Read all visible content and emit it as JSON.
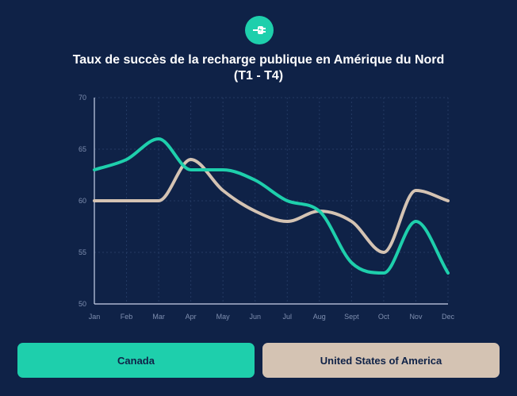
{
  "header": {
    "title_line1": "Taux de succès de la recharge publique en Amérique du Nord",
    "title_line2": "(T1 - T4)",
    "logo_icon": "plug-icon"
  },
  "legend": {
    "canada_label": "Canada",
    "usa_label": "United States of America"
  },
  "chart_data": {
    "type": "line",
    "categories": [
      "Jan",
      "Feb",
      "Mar",
      "Apr",
      "May",
      "Jun",
      "Jul",
      "Aug",
      "Sept",
      "Oct",
      "Nov",
      "Dec"
    ],
    "series": [
      {
        "name": "Canada",
        "color": "#1ecfac",
        "values": [
          63,
          64,
          66,
          63,
          63,
          62,
          60,
          59,
          54,
          53,
          58,
          53
        ]
      },
      {
        "name": "United States of America",
        "color": "#d4c3b3",
        "values": [
          60,
          60,
          60,
          64,
          61,
          59,
          58,
          59,
          58,
          55,
          61,
          60
        ]
      }
    ],
    "yticks": [
      50,
      55,
      60,
      65,
      70
    ],
    "ylim": [
      50,
      70
    ],
    "grid": true,
    "smooth": true
  }
}
